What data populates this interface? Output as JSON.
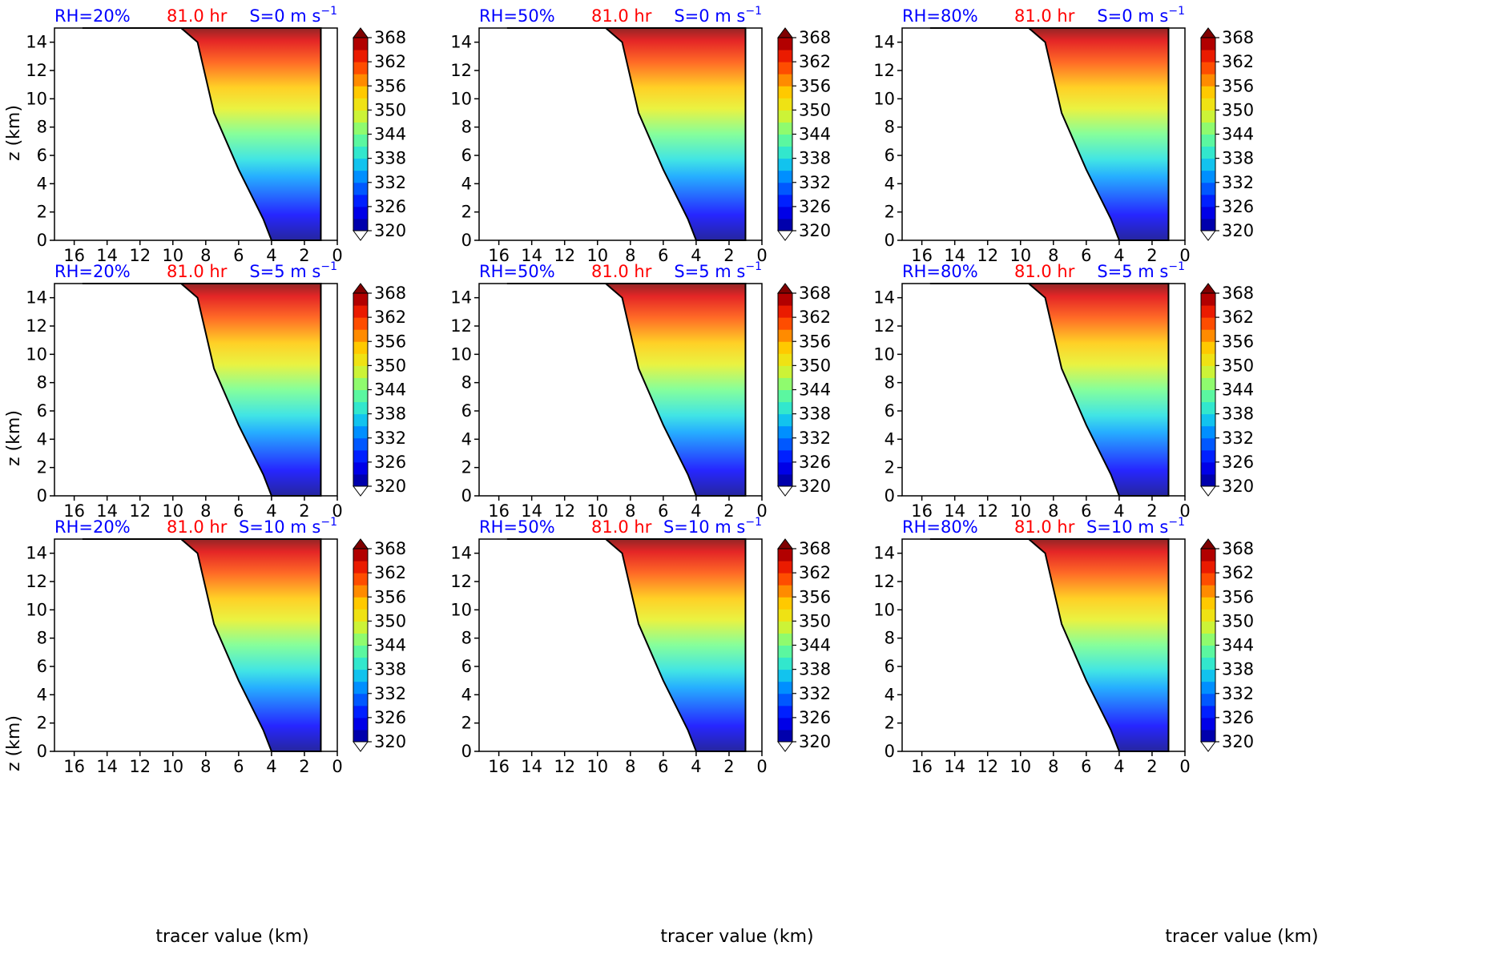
{
  "figure": {
    "time_label": "81.0 hr",
    "rh_labels": [
      "RH=20%",
      "RH=50%",
      "RH=80%"
    ],
    "shear_prefixes": [
      "S=0 m s",
      "S=5 m s",
      "S=10 m s"
    ],
    "shear_exponent": "−1",
    "xlabel": "tracer value (km)",
    "ylabel": "z (km)",
    "colorbar_ticks": [
      368,
      362,
      356,
      350,
      344,
      338,
      332,
      326,
      320
    ],
    "colors": {
      "rh_label": "#0000ff",
      "time_label": "#ff0000",
      "shear_label": "#0000ff"
    }
  },
  "chart_data": {
    "type": "contourf",
    "panels": "3x3 grid (rows: S = 0, 5, 10 m s^-1; columns: RH = 20%, 50%, 80%)",
    "x_axis": {
      "ticks": [
        16,
        14,
        12,
        10,
        8,
        6,
        4,
        2,
        0
      ],
      "range": [
        17.2,
        0
      ],
      "reversed": true,
      "label": "tracer value (km)"
    },
    "y_axis": {
      "ticks": [
        0,
        2,
        4,
        6,
        8,
        10,
        12,
        14
      ],
      "range": [
        0,
        15
      ],
      "label": "z (km)"
    },
    "colorbar": {
      "min": 320,
      "max": 368,
      "step": 3,
      "extend": "both",
      "ticks": [
        320,
        326,
        332,
        338,
        344,
        350,
        356,
        362,
        368
      ],
      "colormap": "jet"
    }
  }
}
